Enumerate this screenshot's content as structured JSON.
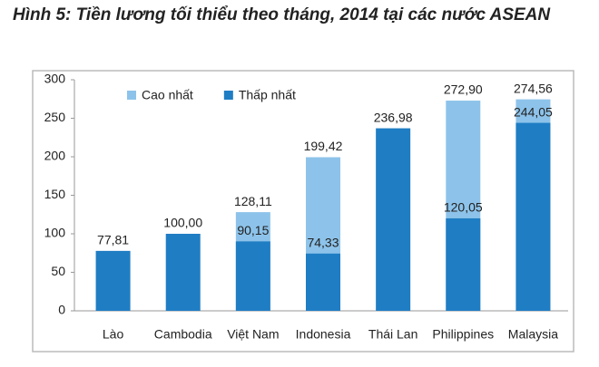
{
  "chart_data": {
    "type": "bar",
    "title": "Hình 5: Tiền lương tối thiểu theo tháng, 2014 tại các nước ASEAN",
    "categories": [
      "Lào",
      "Cambodia",
      "Việt Nam",
      "Indonesia",
      "Thái Lan",
      "Philippines",
      "Malaysia"
    ],
    "series": [
      {
        "name": "Cao nhất",
        "color": "#8dc3ea",
        "values": [
          null,
          null,
          128.11,
          199.42,
          null,
          272.9,
          274.56
        ],
        "value_labels": [
          null,
          null,
          "128,11",
          "199,42",
          null,
          "272,90",
          "274,56"
        ]
      },
      {
        "name": "Thấp nhất",
        "color": "#1f7dc4",
        "values": [
          77.81,
          100,
          90.15,
          74.33,
          236.98,
          120.05,
          244.05
        ],
        "value_labels": [
          "77,81",
          "100,00",
          "90,15",
          "74,33",
          "236,98",
          "120,05",
          "244,05"
        ]
      }
    ],
    "ylim": [
      0,
      300
    ],
    "yticks": [
      0,
      50,
      100,
      150,
      200,
      250,
      300
    ],
    "grid": false,
    "legend": "top-left"
  }
}
